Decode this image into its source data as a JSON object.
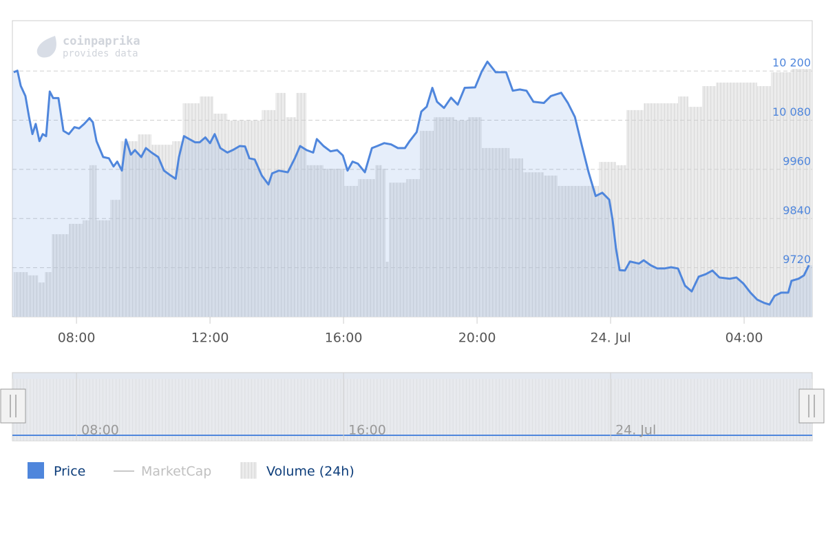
{
  "chart_data": {
    "type": "line",
    "credits": [
      "coinpaprika",
      "provides data"
    ],
    "xlim": [
      6.08,
      30.04
    ],
    "xticks": [
      {
        "value": 8,
        "label": "08:00"
      },
      {
        "value": 12,
        "label": "12:00"
      },
      {
        "value": 16,
        "label": "16:00"
      },
      {
        "value": 20,
        "label": "20:00"
      },
      {
        "value": 24,
        "label": "24. Jul"
      },
      {
        "value": 28,
        "label": "04:00"
      }
    ],
    "ylim": [
      9600,
      10323
    ],
    "yticks": [
      {
        "value": 9720,
        "label": "9720"
      },
      {
        "value": 9840,
        "label": "9840"
      },
      {
        "value": 9960,
        "label": "9960"
      },
      {
        "value": 10080,
        "label": "10 080"
      },
      {
        "value": 10200,
        "label": "10 200"
      }
    ],
    "y2lim": [
      0,
      100
    ],
    "grid": true,
    "navigator_xticks": [
      {
        "value": 8,
        "label": "08:00"
      },
      {
        "value": 16,
        "label": "16:00"
      },
      {
        "value": 24,
        "label": "24. Jul"
      }
    ],
    "series": [
      {
        "name": "Price",
        "color": "#4f86dc",
        "x": [
          6.12,
          6.23,
          6.33,
          6.47,
          6.58,
          6.68,
          6.78,
          6.89,
          6.99,
          7.09,
          7.2,
          7.3,
          7.46,
          7.61,
          7.77,
          7.94,
          8.08,
          8.23,
          8.39,
          8.49,
          8.6,
          8.8,
          8.97,
          9.11,
          9.22,
          9.36,
          9.48,
          9.63,
          9.75,
          9.94,
          10.08,
          10.25,
          10.45,
          10.62,
          10.82,
          10.97,
          11.07,
          11.22,
          11.38,
          11.55,
          11.69,
          11.86,
          12.0,
          12.14,
          12.31,
          12.52,
          12.68,
          12.89,
          13.05,
          13.18,
          13.34,
          13.55,
          13.75,
          13.86,
          14.06,
          14.33,
          14.54,
          14.7,
          14.89,
          15.09,
          15.2,
          15.4,
          15.61,
          15.81,
          15.98,
          16.12,
          16.27,
          16.43,
          16.64,
          16.85,
          17.01,
          17.22,
          17.42,
          17.63,
          17.84,
          17.98,
          18.19,
          18.33,
          18.49,
          18.66,
          18.8,
          19.01,
          19.22,
          19.42,
          19.63,
          19.94,
          20.14,
          20.31,
          20.56,
          20.87,
          21.07,
          21.28,
          21.48,
          21.69,
          22.0,
          22.21,
          22.52,
          22.72,
          22.93,
          23.13,
          23.34,
          23.55,
          23.75,
          23.96,
          24.06,
          24.16,
          24.27,
          24.43,
          24.58,
          24.85,
          24.99,
          25.2,
          25.4,
          25.61,
          25.81,
          26.02,
          26.23,
          26.43,
          26.64,
          26.85,
          27.05,
          27.26,
          27.57,
          27.77,
          27.98,
          28.19,
          28.39,
          28.6,
          28.76,
          28.91,
          29.11,
          29.32,
          29.42,
          29.63,
          29.79,
          29.94
        ],
        "values": [
          10197,
          10201,
          10164,
          10139,
          10088,
          10046,
          10071,
          10029,
          10046,
          10041,
          10150,
          10134,
          10134,
          10054,
          10046,
          10063,
          10060,
          10071,
          10085,
          10075,
          10029,
          9990,
          9987,
          9967,
          9979,
          9957,
          10033,
          9996,
          10007,
          9990,
          10012,
          10001,
          9990,
          9957,
          9945,
          9937,
          9990,
          10041,
          10034,
          10026,
          10026,
          10038,
          10024,
          10046,
          10012,
          10001,
          10007,
          10017,
          10016,
          9987,
          9984,
          9945,
          9923,
          9950,
          9957,
          9953,
          9987,
          10017,
          10007,
          10001,
          10034,
          10017,
          10004,
          10007,
          9994,
          9957,
          9979,
          9974,
          9953,
          10012,
          10017,
          10024,
          10021,
          10012,
          10012,
          10029,
          10051,
          10101,
          10113,
          10159,
          10125,
          10110,
          10135,
          10118,
          10159,
          10160,
          10199,
          10223,
          10197,
          10197,
          10152,
          10155,
          10152,
          10125,
          10122,
          10139,
          10147,
          10122,
          10088,
          10021,
          9953,
          9895,
          9903,
          9886,
          9836,
          9768,
          9714,
          9713,
          9735,
          9730,
          9738,
          9726,
          9718,
          9718,
          9721,
          9718,
          9676,
          9662,
          9698,
          9704,
          9713,
          9696,
          9693,
          9696,
          9681,
          9659,
          9642,
          9634,
          9630,
          9651,
          9659,
          9659,
          9688,
          9693,
          9701,
          9726
        ]
      },
      {
        "name": "MarketCap",
        "color": "#c8c8c8",
        "visible": false
      },
      {
        "name": "Volume (24h)",
        "color": "#e6e6e6",
        "axis": "y2",
        "x": [
          6.12,
          6.54,
          6.85,
          7.05,
          7.26,
          7.77,
          8.19,
          8.39,
          8.6,
          9.01,
          9.32,
          9.84,
          10.25,
          10.87,
          11.18,
          11.69,
          12.1,
          12.52,
          13.13,
          13.55,
          13.96,
          14.27,
          14.58,
          14.89,
          15.4,
          16.02,
          16.43,
          16.95,
          17.15,
          17.26,
          17.36,
          17.88,
          18.29,
          18.7,
          19.32,
          19.73,
          20.14,
          20.97,
          21.38,
          22.0,
          22.41,
          23.03,
          23.65,
          24.16,
          24.47,
          24.99,
          25.51,
          26.02,
          26.33,
          26.74,
          27.16,
          27.98,
          28.39,
          28.8,
          29.42,
          29.98
        ],
        "values": [
          15.1,
          14.0,
          11.6,
          15.1,
          27.9,
          31.4,
          32.6,
          51.2,
          32.6,
          39.5,
          59.3,
          61.6,
          58.1,
          59.3,
          72.1,
          74.4,
          68.6,
          66.3,
          66.3,
          69.8,
          75.6,
          67.4,
          75.6,
          51.2,
          50.0,
          44.2,
          46.5,
          51.2,
          50.0,
          18.6,
          45.3,
          46.5,
          62.8,
          67.4,
          66.3,
          67.4,
          57.0,
          53.5,
          48.8,
          47.7,
          44.2,
          44.2,
          52.3,
          51.2,
          69.8,
          72.1,
          72.1,
          74.4,
          70.9,
          77.9,
          79.1,
          79.1,
          77.9,
          82.6,
          83.7,
          83.7
        ]
      }
    ]
  }
}
